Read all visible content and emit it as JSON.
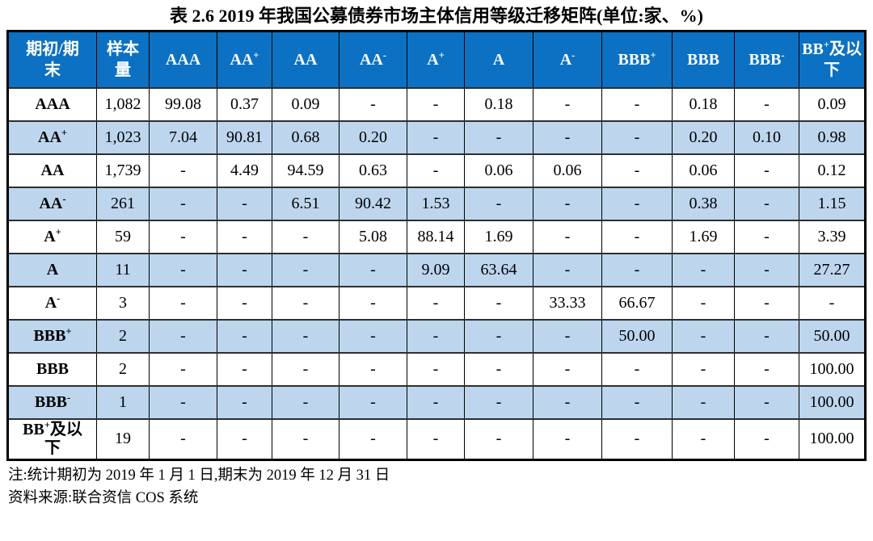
{
  "title": "表 2.6  2019 年我国公募债券市场主体信用等级迁移矩阵(单位:家、%)",
  "table": {
    "corner_header": "期初/期末",
    "columns": [
      "期初/期\n末",
      "样本\n量",
      "AAA",
      "AA{+}",
      "AA",
      "AA{-}",
      "A{+}",
      "A",
      "A{-}",
      "BBB{+}",
      "BBB",
      "BBB{-}",
      "BB{+}及以\n下"
    ],
    "rows": [
      [
        "AAA",
        "1,082",
        "99.08",
        "0.37",
        "0.09",
        "-",
        "-",
        "0.18",
        "-",
        "-",
        "0.18",
        "-",
        "0.09"
      ],
      [
        "AA{+}",
        "1,023",
        "7.04",
        "90.81",
        "0.68",
        "0.20",
        "-",
        "-",
        "-",
        "-",
        "0.20",
        "0.10",
        "0.98"
      ],
      [
        "AA",
        "1,739",
        "-",
        "4.49",
        "94.59",
        "0.63",
        "-",
        "0.06",
        "0.06",
        "-",
        "0.06",
        "-",
        "0.12"
      ],
      [
        "AA{-}",
        "261",
        "-",
        "-",
        "6.51",
        "90.42",
        "1.53",
        "-",
        "-",
        "-",
        "0.38",
        "-",
        "1.15"
      ],
      [
        "A{+}",
        "59",
        "-",
        "-",
        "-",
        "5.08",
        "88.14",
        "1.69",
        "-",
        "-",
        "1.69",
        "-",
        "3.39"
      ],
      [
        "A",
        "11",
        "-",
        "-",
        "-",
        "-",
        "9.09",
        "63.64",
        "-",
        "-",
        "-",
        "-",
        "27.27"
      ],
      [
        "A{-}",
        "3",
        "-",
        "-",
        "-",
        "-",
        "-",
        "-",
        "33.33",
        "66.67",
        "-",
        "-",
        "-"
      ],
      [
        "BBB{+}",
        "2",
        "-",
        "-",
        "-",
        "-",
        "-",
        "-",
        "-",
        "50.00",
        "-",
        "-",
        "50.00"
      ],
      [
        "BBB",
        "2",
        "-",
        "-",
        "-",
        "-",
        "-",
        "-",
        "-",
        "-",
        "-",
        "-",
        "100.00"
      ],
      [
        "BBB{-}",
        "1",
        "-",
        "-",
        "-",
        "-",
        "-",
        "-",
        "-",
        "-",
        "-",
        "-",
        "100.00"
      ],
      [
        "BB{+}及以\n下",
        "19",
        "-",
        "-",
        "-",
        "-",
        "-",
        "-",
        "-",
        "-",
        "-",
        "-",
        "100.00"
      ]
    ]
  },
  "notes": [
    "注:统计期初为 2019 年 1 月 1 日,期末为 2019 年 12 月 31 日",
    "资料来源:联合资信 COS 系统"
  ],
  "colors": {
    "header_bg": "#0c71c2",
    "header_text": "#ffffff",
    "row_alt_bg": "#bdd6ee",
    "border": "#000000"
  }
}
